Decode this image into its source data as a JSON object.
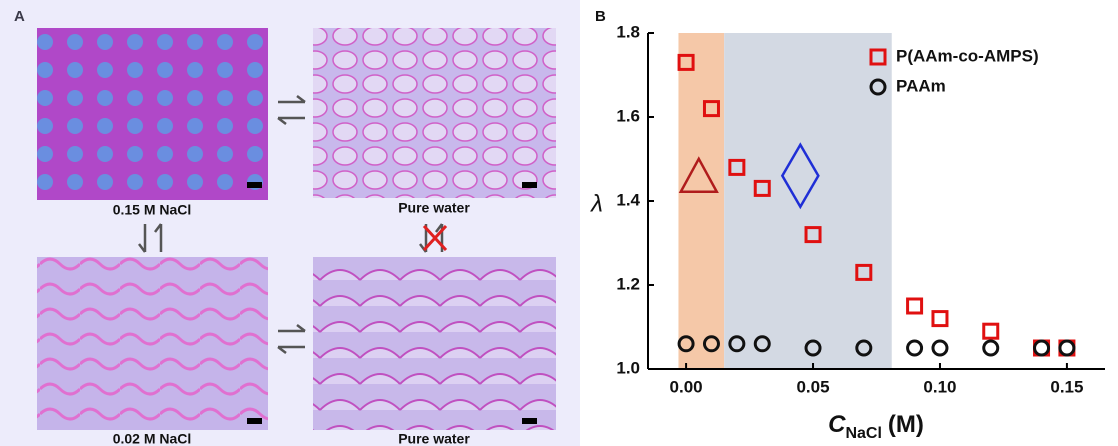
{
  "panel_a": {
    "label": "A",
    "images": [
      {
        "caption": "0.15 M NaCl"
      },
      {
        "caption": "Pure water"
      },
      {
        "caption": "0.02 M NaCl"
      },
      {
        "caption": "Pure water"
      }
    ]
  },
  "chart_data": {
    "type": "scatter",
    "panel_label": "B",
    "ylabel": "λ",
    "xlabel": {
      "symbol": "C",
      "subscript": "NaCl",
      "unit": "(M)"
    },
    "xlim": [
      -0.015,
      0.165
    ],
    "ylim": [
      1.0,
      1.8
    ],
    "xticks": [
      {
        "value": 0,
        "label": "0.00"
      },
      0.05,
      {
        "value": 0.1,
        "label": "0.10"
      },
      0.15
    ],
    "yticks": [
      {
        "value": 1.0,
        "label": "1.0"
      },
      1.2,
      1.4,
      1.6,
      1.8
    ],
    "regions": [
      {
        "x0": -0.003,
        "x1": 0.015,
        "color": "#f5c8a8"
      },
      {
        "x0": 0.015,
        "x1": 0.081,
        "color": "#d3d9e3"
      }
    ],
    "shapes": [
      {
        "shape": "triangle",
        "x": 0.005,
        "y": 1.46,
        "color": "#b01c1c"
      },
      {
        "shape": "diamond",
        "x": 0.045,
        "y": 1.46,
        "color": "#1f2fd6"
      }
    ],
    "series": [
      {
        "name": "P(AAm-co-AMPS)",
        "marker": "square",
        "color": "#e01010",
        "x": [
          0,
          0.01,
          0.02,
          0.03,
          0.05,
          0.07,
          0.09,
          0.1,
          0.12,
          0.14,
          0.15
        ],
        "values": [
          1.73,
          1.62,
          1.48,
          1.43,
          1.32,
          1.23,
          1.15,
          1.12,
          1.09,
          1.05,
          1.05
        ]
      },
      {
        "name": "PAAm",
        "marker": "circle",
        "color": "#111111",
        "x": [
          0,
          0.01,
          0.02,
          0.03,
          0.05,
          0.07,
          0.09,
          0.1,
          0.12,
          0.14,
          0.15
        ],
        "values": [
          1.06,
          1.06,
          1.06,
          1.06,
          1.05,
          1.05,
          1.05,
          1.05,
          1.05,
          1.05,
          1.05
        ]
      }
    ]
  }
}
